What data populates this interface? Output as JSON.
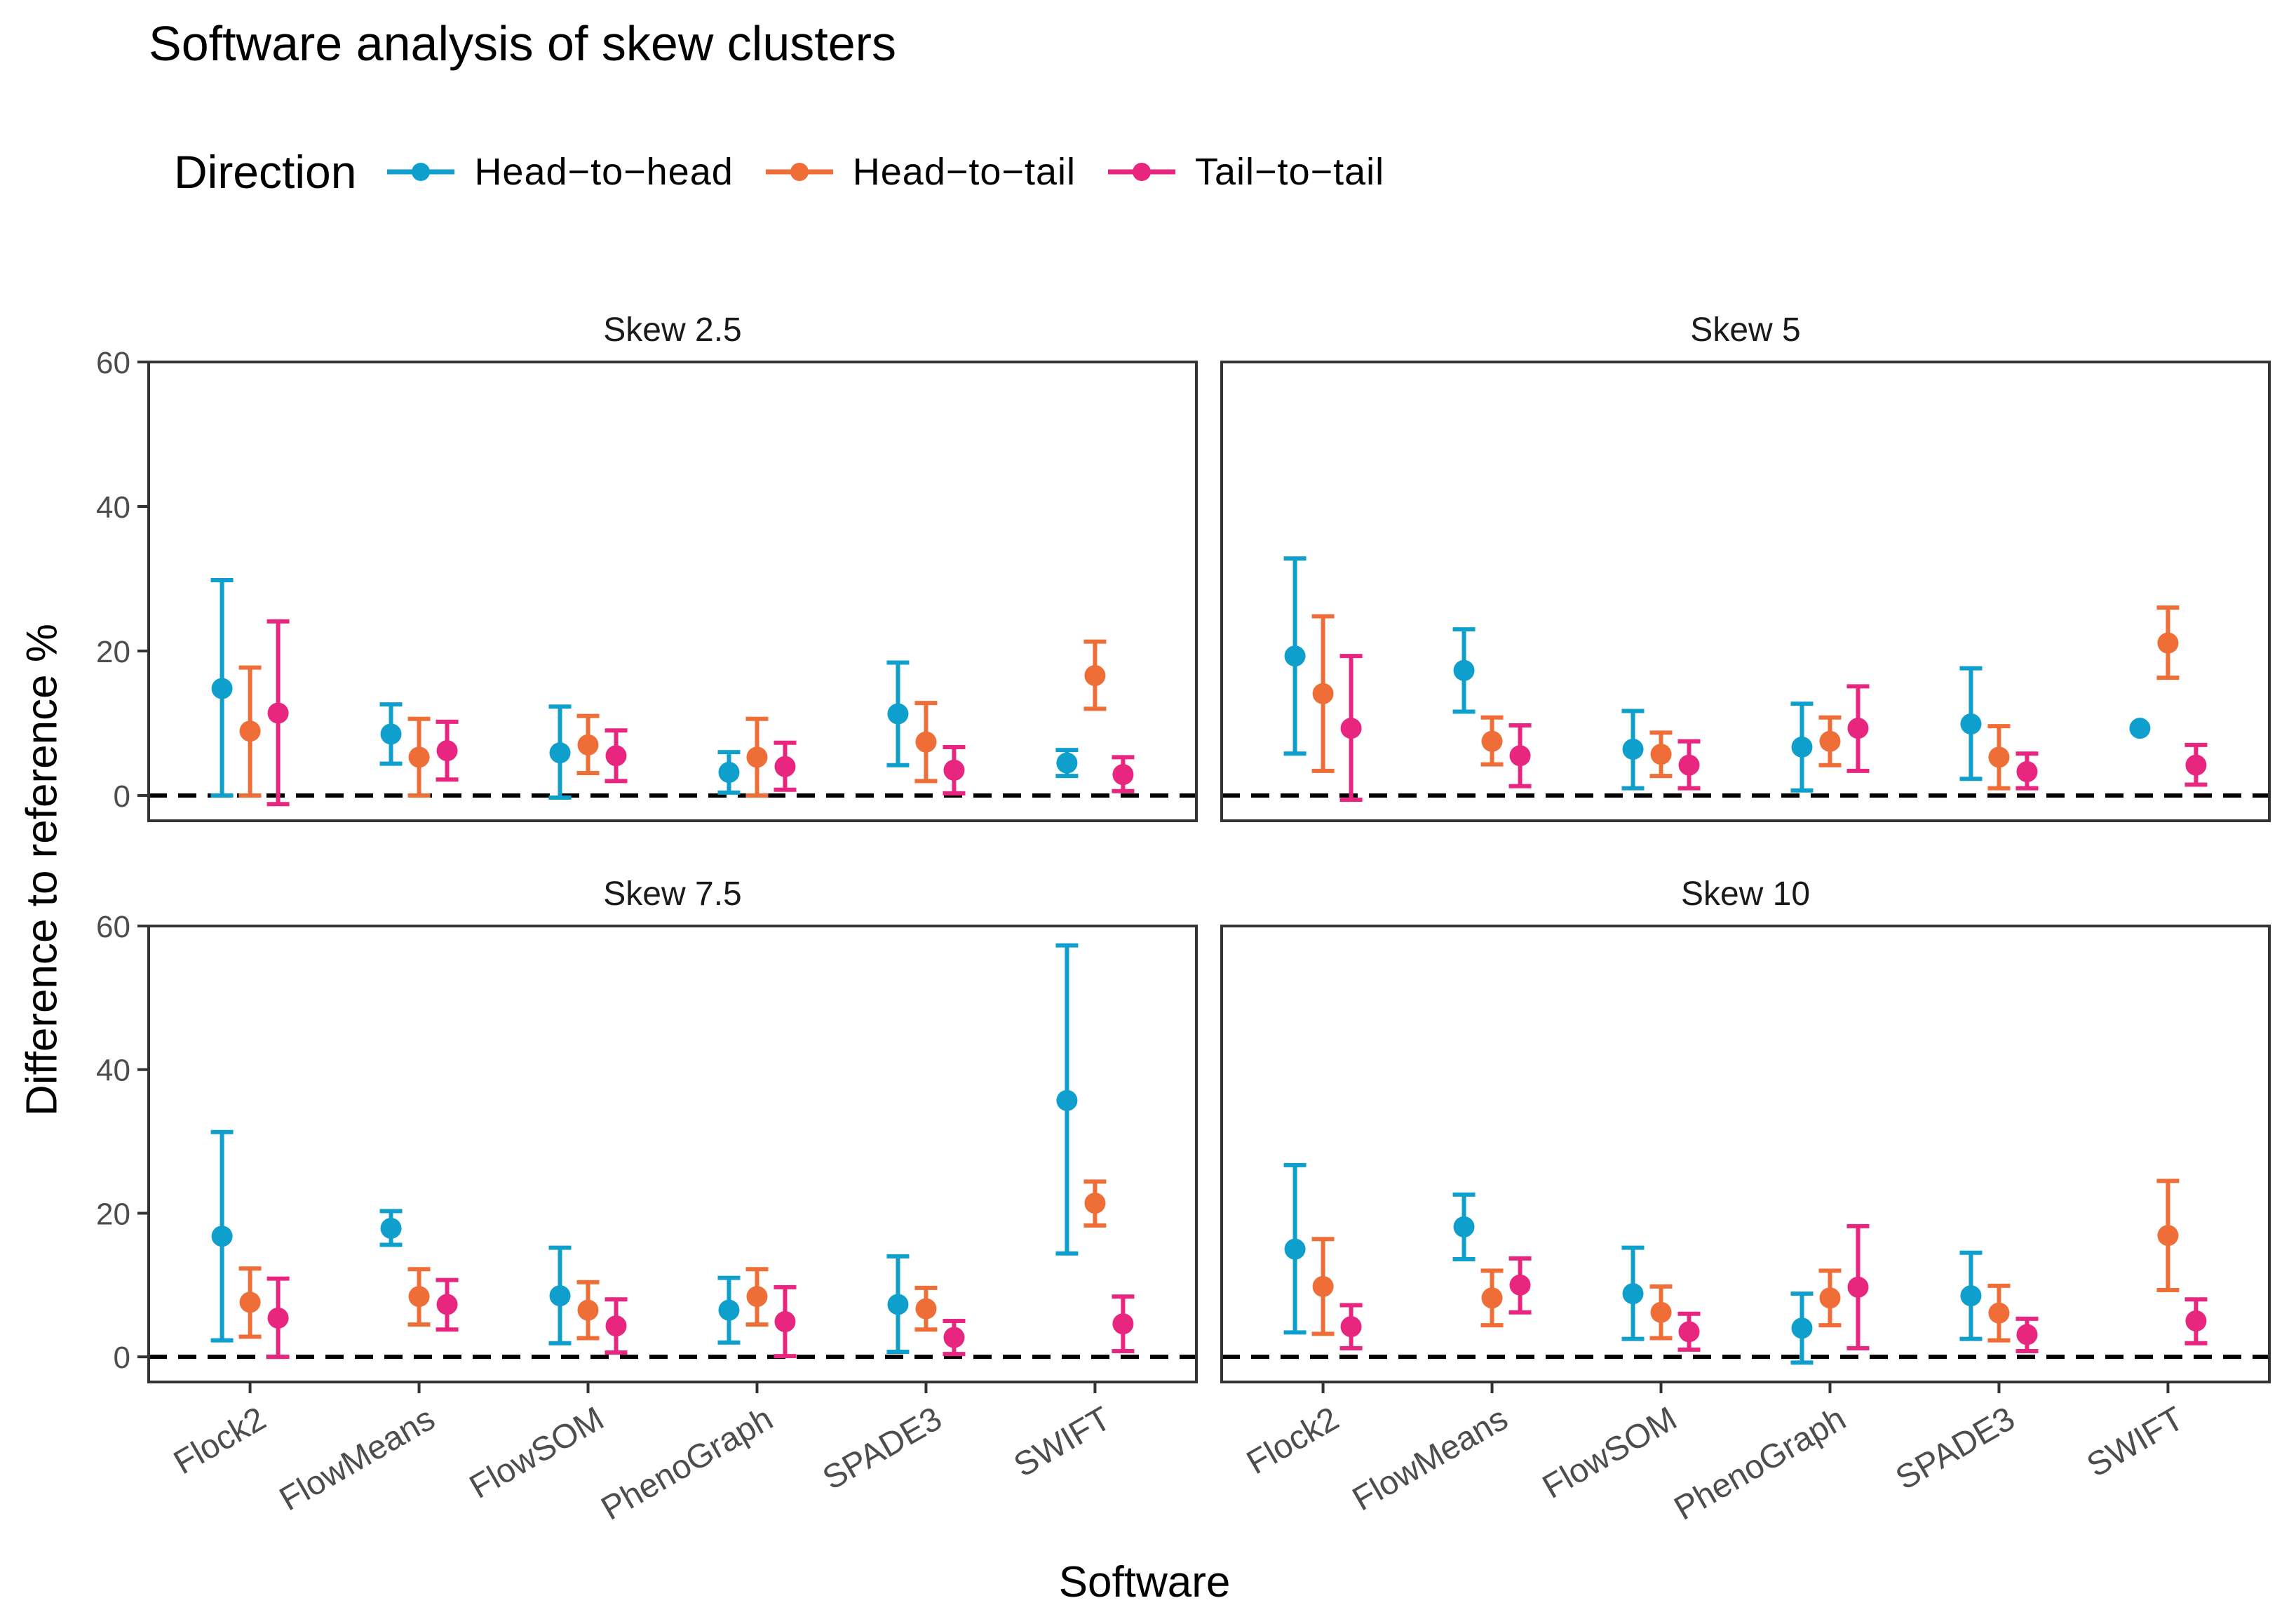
{
  "title": "Software analysis of skew clusters",
  "legend": {
    "title": "Direction",
    "items": [
      {
        "label": "Head−to−head",
        "color": "#0f9fcd"
      },
      {
        "label": "Head−to−tail",
        "color": "#ef6e37"
      },
      {
        "label": "Tail−to−tail",
        "color": "#e8257f"
      }
    ]
  },
  "chart_data": {
    "type": "errorbar",
    "title": "Software analysis of skew clusters",
    "xlabel": "Software",
    "ylabel": "Difference to reference %",
    "ylim": [
      -3.5,
      60
    ],
    "yticks": [
      "0",
      "20",
      "40",
      "60"
    ],
    "reference_line": 0,
    "categories": [
      "Flock2",
      "FlowMeans",
      "FlowSOM",
      "PhenoGraph",
      "SPADE3",
      "SWIFT"
    ],
    "series_names": [
      "Head−to−head",
      "Head−to−tail",
      "Tail−to−tail"
    ],
    "panels": [
      {
        "title": "Skew 2.5",
        "series": [
          {
            "name": "Head−to−head",
            "mean": [
              14.8,
              8.5,
              5.9,
              3.2,
              11.3,
              4.5
            ],
            "lower": [
              0,
              4.4,
              -0.3,
              0.4,
              4.2,
              2.7
            ],
            "upper": [
              29.8,
              12.6,
              12.3,
              6.0,
              18.4,
              6.3
            ]
          },
          {
            "name": "Head−to−tail",
            "mean": [
              8.9,
              5.3,
              7.0,
              5.3,
              7.4,
              16.6
            ],
            "lower": [
              0,
              0,
              3.1,
              0,
              2.0,
              12.0
            ],
            "upper": [
              17.7,
              10.6,
              11.0,
              10.6,
              12.8,
              21.3
            ]
          },
          {
            "name": "Tail−to−tail",
            "mean": [
              11.4,
              6.2,
              5.5,
              4.0,
              3.5,
              2.9
            ],
            "lower": [
              -1.2,
              2.2,
              2.0,
              0.8,
              0.3,
              0.6
            ],
            "upper": [
              24.1,
              10.2,
              9.0,
              7.3,
              6.7,
              5.3
            ]
          }
        ]
      },
      {
        "title": "Skew 5",
        "series": [
          {
            "name": "Head−to−head",
            "mean": [
              19.3,
              17.3,
              6.4,
              6.7,
              9.9,
              9.3
            ],
            "lower": [
              5.8,
              11.6,
              1.0,
              0.7,
              2.3,
              9.3
            ],
            "upper": [
              32.8,
              23.0,
              11.7,
              12.7,
              17.6,
              9.3
            ]
          },
          {
            "name": "Head−to−tail",
            "mean": [
              14.1,
              7.5,
              5.7,
              7.5,
              5.3,
              21.1
            ],
            "lower": [
              3.4,
              4.3,
              2.7,
              4.2,
              1.0,
              16.3
            ],
            "upper": [
              24.8,
              10.8,
              8.7,
              10.8,
              9.6,
              26.0
            ]
          },
          {
            "name": "Tail−to−tail",
            "mean": [
              9.3,
              5.5,
              4.2,
              9.3,
              3.3,
              4.2
            ],
            "lower": [
              -0.6,
              1.3,
              1.0,
              3.4,
              1.0,
              1.5
            ],
            "upper": [
              19.3,
              9.7,
              7.5,
              15.1,
              5.8,
              7.0
            ]
          }
        ]
      },
      {
        "title": "Skew 7.5",
        "series": [
          {
            "name": "Head−to−head",
            "mean": [
              16.8,
              17.9,
              8.5,
              6.5,
              7.3,
              35.7
            ],
            "lower": [
              2.3,
              15.6,
              1.9,
              2.0,
              0.7,
              14.4
            ],
            "upper": [
              31.3,
              20.3,
              15.2,
              11.0,
              14.0,
              57.3
            ]
          },
          {
            "name": "Head−to−tail",
            "mean": [
              7.6,
              8.4,
              6.5,
              8.4,
              6.7,
              21.4
            ],
            "lower": [
              2.8,
              4.5,
              2.6,
              4.5,
              3.8,
              18.3
            ],
            "upper": [
              12.3,
              12.2,
              10.4,
              12.2,
              9.6,
              24.4
            ]
          },
          {
            "name": "Tail−to−tail",
            "mean": [
              5.4,
              7.3,
              4.3,
              4.9,
              2.7,
              4.6
            ],
            "lower": [
              0,
              3.8,
              0.6,
              0.1,
              0.4,
              0.8
            ],
            "upper": [
              10.9,
              10.7,
              8.0,
              9.7,
              5.0,
              8.4
            ]
          }
        ]
      },
      {
        "title": "Skew 10",
        "series": [
          {
            "name": "Head−to−head",
            "mean": [
              15.0,
              18.1,
              8.8,
              4.0,
              8.5,
              null
            ],
            "lower": [
              3.4,
              13.6,
              2.5,
              -0.8,
              2.5,
              null
            ],
            "upper": [
              26.7,
              22.6,
              15.2,
              8.8,
              14.5,
              null
            ]
          },
          {
            "name": "Head−to−tail",
            "mean": [
              9.8,
              8.2,
              6.2,
              8.2,
              6.1,
              16.9
            ],
            "lower": [
              3.2,
              4.4,
              2.6,
              4.4,
              2.3,
              9.3
            ],
            "upper": [
              16.4,
              12.0,
              9.8,
              12.0,
              9.9,
              24.5
            ]
          },
          {
            "name": "Tail−to−tail",
            "mean": [
              4.2,
              10.0,
              3.5,
              9.7,
              3.1,
              5.0
            ],
            "lower": [
              1.2,
              6.2,
              1.0,
              1.2,
              0.8,
              1.9
            ],
            "upper": [
              7.2,
              13.7,
              6.0,
              18.2,
              5.3,
              8.0
            ]
          }
        ]
      }
    ]
  }
}
